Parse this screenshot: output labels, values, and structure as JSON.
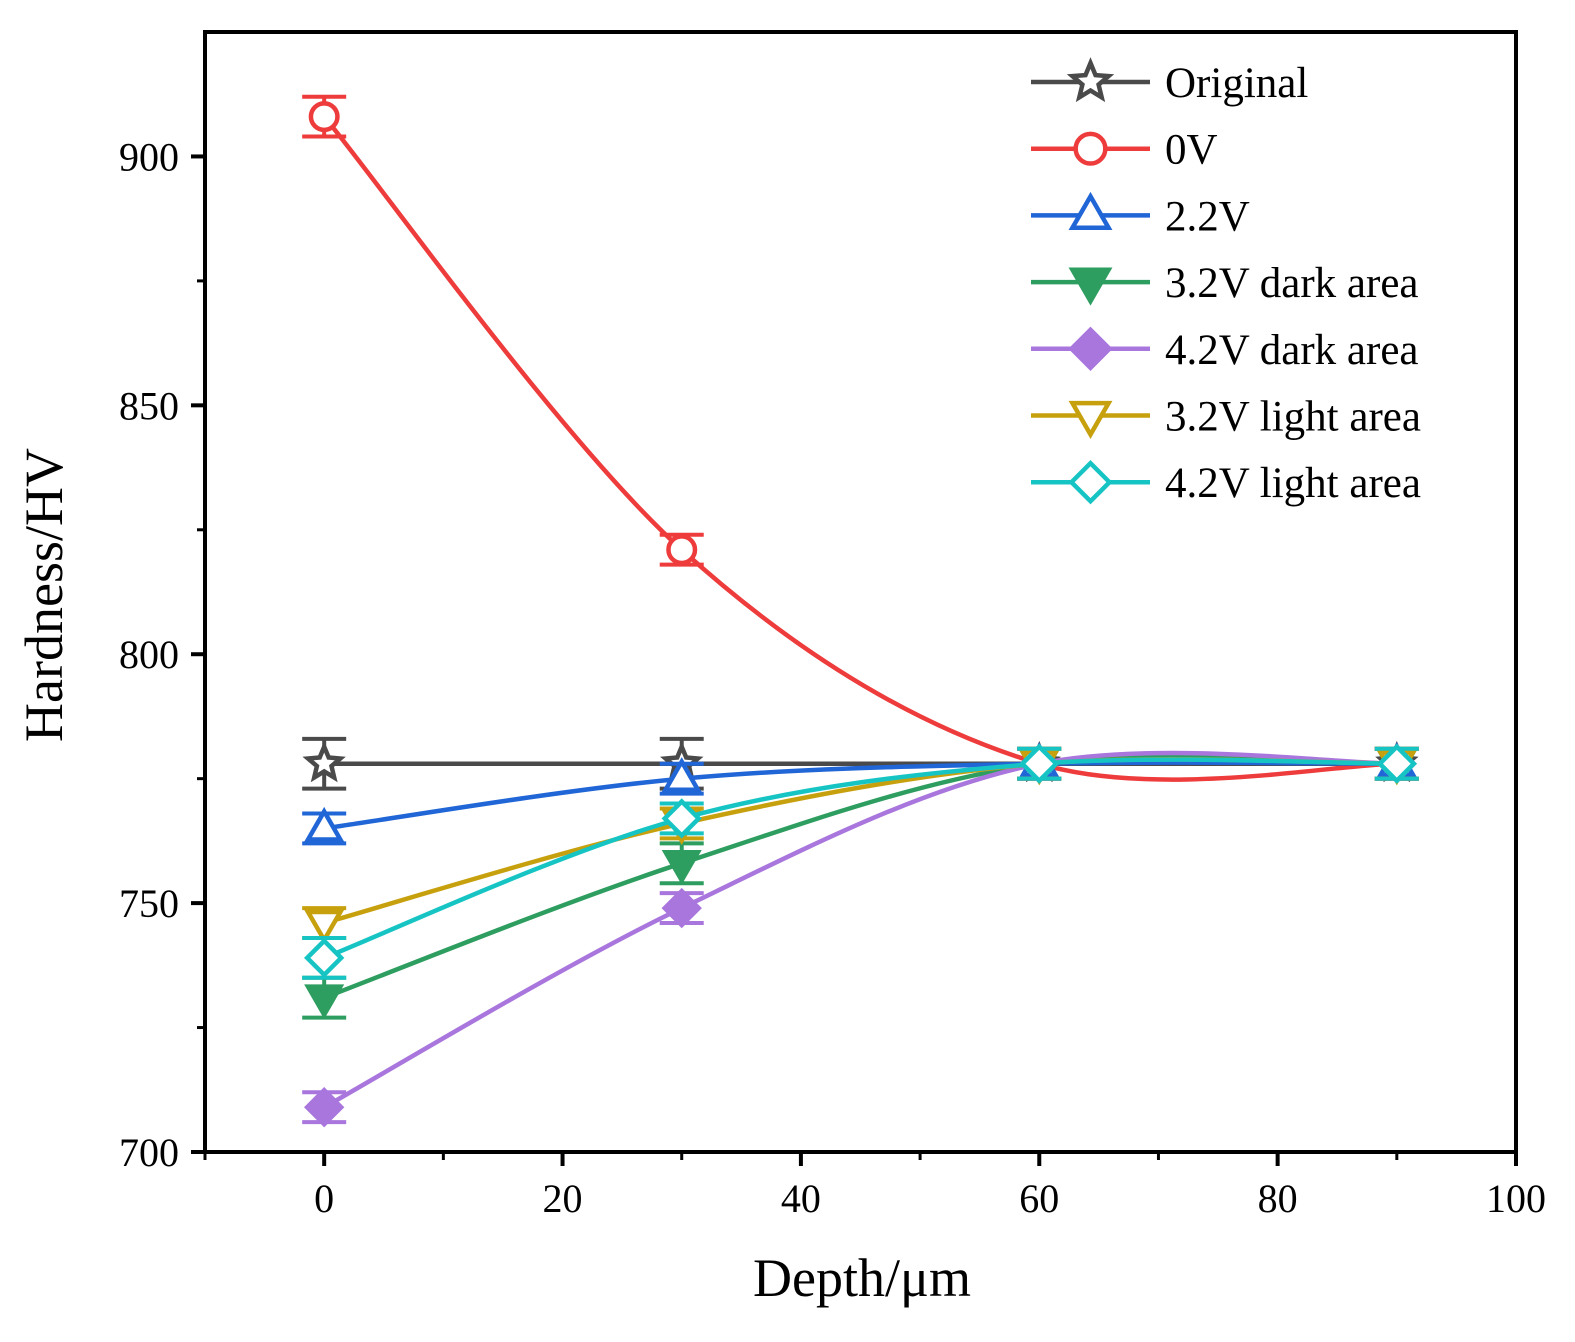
{
  "chart_data": {
    "type": "line",
    "title": "",
    "xlabel": "Depth/μm",
    "ylabel": "Hardness/HV",
    "xlim": [
      -10,
      100
    ],
    "ylim": [
      700,
      925
    ],
    "x_major_ticks": [
      0,
      20,
      40,
      60,
      80,
      100
    ],
    "x_tick_labels": [
      "0",
      "20",
      "40",
      "60",
      "80",
      "100"
    ],
    "x_minor_ticks": [
      -10,
      10,
      30,
      50,
      70,
      90
    ],
    "y_major_ticks": [
      700,
      750,
      800,
      850,
      900
    ],
    "y_tick_labels": [
      "700",
      "750",
      "800",
      "850",
      "900"
    ],
    "y_minor_ticks": [
      725,
      775,
      825,
      875
    ],
    "legend_position": "top-right",
    "grid": false,
    "x": [
      0,
      30,
      60,
      90
    ],
    "series": [
      {
        "name": "Original",
        "color": "#4a4a4a",
        "marker": "star",
        "fill": false,
        "values": [
          778,
          778,
          778,
          778
        ],
        "errors": [
          5,
          5,
          3,
          3
        ]
      },
      {
        "name": "0V",
        "color": "#ee3b3b",
        "marker": "circle",
        "fill": false,
        "values": [
          908,
          821,
          778,
          778
        ],
        "errors": [
          4,
          3,
          3,
          3
        ]
      },
      {
        "name": "2.2V",
        "color": "#2166d6",
        "marker": "triangle-up",
        "fill": false,
        "values": [
          765,
          775,
          778,
          778
        ],
        "errors": [
          3,
          3,
          3,
          3
        ]
      },
      {
        "name": "3.2V dark area",
        "color": "#2e9e60",
        "marker": "triangle-down",
        "fill": true,
        "values": [
          731,
          758,
          778,
          778
        ],
        "errors": [
          4,
          4,
          3,
          3
        ]
      },
      {
        "name": "4.2V dark area",
        "color": "#a976dd",
        "marker": "diamond",
        "fill": true,
        "values": [
          709,
          749,
          778,
          778
        ],
        "errors": [
          3,
          3,
          3,
          3
        ]
      },
      {
        "name": "3.2V light area",
        "color": "#c7a00e",
        "marker": "triangle-down",
        "fill": false,
        "values": [
          746,
          766,
          778,
          778
        ],
        "errors": [
          3,
          3,
          3,
          3
        ]
      },
      {
        "name": "4.2V light area",
        "color": "#17c4c4",
        "marker": "diamond",
        "fill": false,
        "values": [
          739,
          767,
          778,
          778
        ],
        "errors": [
          4,
          3,
          3,
          3
        ]
      }
    ]
  }
}
